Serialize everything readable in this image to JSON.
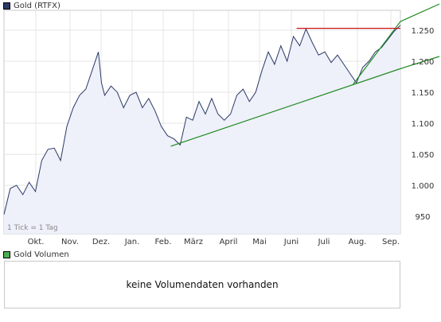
{
  "legend": {
    "price_label": "Gold (RTFX)",
    "price_color": "#2b3a67",
    "volume_label": "Gold Volumen",
    "volume_color": "#4caf50"
  },
  "volume_message": "keine Volumendaten vorhanden",
  "tick_note": "1 Tick = 1 Tag",
  "colors": {
    "price_line": "#2b3a67",
    "price_fill": "#eef0fa",
    "trend_line": "#1f8a1f",
    "resistance_line": "#cc1111",
    "grid": "#e4e4e4",
    "frame": "#c8c8c8"
  },
  "chart_data": {
    "type": "line",
    "title": "Gold (RTFX)",
    "xlabel": "",
    "ylabel": "",
    "x_tick_labels": [
      "Okt.",
      "Nov.",
      "Dez.",
      "Jan.",
      "Feb.",
      "März",
      "April",
      "Mai",
      "Juni",
      "Juli",
      "Aug.",
      "Sep."
    ],
    "y_tick_values": [
      950,
      1000,
      1050,
      1100,
      1150,
      1200,
      1250
    ],
    "y_tick_labels": [
      "950",
      "1.000",
      "1.050",
      "1.100",
      "1.150",
      "1.200",
      "1.250"
    ],
    "ylim": [
      922,
      1282
    ],
    "xlim": [
      0,
      252
    ],
    "grid": true,
    "area_fill": true,
    "series": [
      {
        "name": "Gold (RTFX)",
        "x": [
          0,
          4,
          8,
          12,
          16,
          20,
          24,
          28,
          32,
          36,
          40,
          44,
          48,
          52,
          56,
          60,
          62,
          64,
          68,
          72,
          76,
          80,
          84,
          88,
          92,
          96,
          100,
          104,
          108,
          112,
          116,
          120,
          124,
          128,
          132,
          136,
          140,
          144,
          148,
          152,
          156,
          160,
          164,
          168,
          172,
          176,
          180,
          184,
          188,
          192,
          196,
          200,
          204,
          208,
          212,
          216,
          220,
          224,
          228,
          232,
          236,
          240,
          244,
          248,
          252
        ],
        "y": [
          953,
          995,
          1000,
          985,
          1005,
          990,
          1040,
          1058,
          1060,
          1040,
          1095,
          1125,
          1145,
          1155,
          1185,
          1215,
          1165,
          1145,
          1160,
          1150,
          1125,
          1145,
          1150,
          1125,
          1140,
          1120,
          1095,
          1080,
          1075,
          1065,
          1110,
          1105,
          1135,
          1115,
          1140,
          1115,
          1105,
          1115,
          1145,
          1155,
          1135,
          1150,
          1185,
          1215,
          1195,
          1225,
          1200,
          1240,
          1225,
          1252,
          1230,
          1210,
          1215,
          1198,
          1210,
          1195,
          1180,
          1165,
          1190,
          1200,
          1215,
          1222,
          1235,
          1248,
          1258
        ]
      }
    ],
    "annotations": [
      {
        "type": "trend",
        "x": [
          106,
          252
        ],
        "y": [
          1063,
          1188
        ]
      },
      {
        "type": "trend",
        "x": [
          222,
          252
        ],
        "y": [
          1163,
          1264
        ]
      },
      {
        "type": "resistance",
        "x": [
          186,
          252
        ],
        "y": [
          1253,
          1253
        ]
      }
    ]
  }
}
